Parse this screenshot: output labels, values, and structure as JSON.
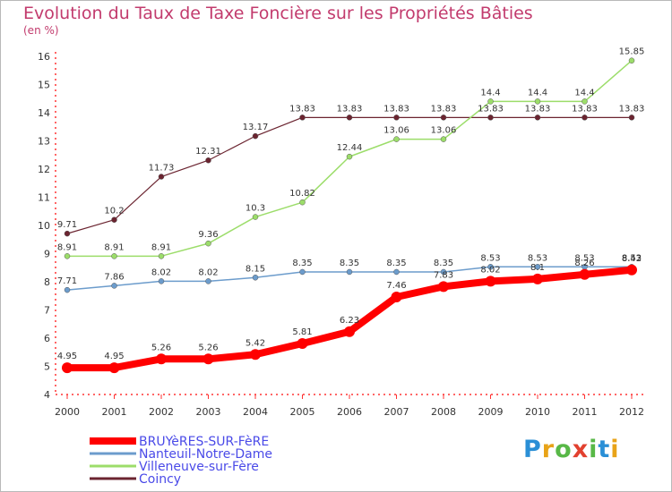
{
  "title": "Evolution du Taux de Taxe Foncière sur les Propriétés Bâties",
  "subtitle": "(en %)",
  "logo": {
    "letters": [
      {
        "t": "P",
        "color": "#2a8fd6"
      },
      {
        "t": "r",
        "color": "#e8a318"
      },
      {
        "t": "o",
        "color": "#58b847"
      },
      {
        "t": "x",
        "color": "#e2412f"
      },
      {
        "t": "i",
        "color": "#58b847"
      },
      {
        "t": "t",
        "color": "#2a8fd6"
      },
      {
        "t": "i",
        "color": "#e8a318"
      }
    ]
  },
  "chart_data": {
    "type": "line",
    "title": "Evolution du Taux de Taxe Foncière sur les Propriétés Bâties",
    "ylabel": "(en %)",
    "xlabel": "",
    "categories": [
      "2000",
      "2001",
      "2002",
      "2003",
      "2004",
      "2005",
      "2006",
      "2007",
      "2008",
      "2009",
      "2010",
      "2011",
      "2012"
    ],
    "ylim": [
      4,
      16
    ],
    "yticks": [
      "4",
      "5",
      "6",
      "7",
      "8",
      "9",
      "10",
      "11",
      "12",
      "13",
      "14",
      "15",
      "16"
    ],
    "grid": false,
    "legend_position": "bottom-left",
    "series": [
      {
        "name": "Coincy",
        "color": "#6b2430",
        "width": 1.2,
        "values": [
          9.71,
          10.2,
          11.73,
          12.31,
          13.17,
          13.83,
          13.83,
          13.83,
          13.83,
          13.83,
          13.83,
          13.83,
          13.83
        ],
        "labels": [
          "9.71",
          "10.2",
          "11.73",
          "12.31",
          "13.17",
          "13.83",
          "13.83",
          "13.83",
          "13.83",
          "13.83",
          "13.83",
          "13.83",
          "13.83"
        ]
      },
      {
        "name": "Villeneuve-sur-Fère",
        "color": "#9cdd6a",
        "width": 1.5,
        "values": [
          8.91,
          8.91,
          8.91,
          9.36,
          10.3,
          10.82,
          12.44,
          13.06,
          13.06,
          14.4,
          14.4,
          14.4,
          15.85
        ],
        "labels": [
          "8.91",
          "8.91",
          "8.91",
          "9.36",
          "10.3",
          "10.82",
          "12.44",
          "13.06",
          "13.06",
          "14.4",
          "14.4",
          "14.4",
          "15.85"
        ]
      },
      {
        "name": "Nanteuil-Notre-Dame",
        "color": "#6c9ccc",
        "width": 1.5,
        "values": [
          7.71,
          7.86,
          8.02,
          8.02,
          8.15,
          8.35,
          8.35,
          8.35,
          8.35,
          8.53,
          8.53,
          8.53,
          8.53
        ],
        "labels": [
          "7.71",
          "7.86",
          "8.02",
          "8.02",
          "8.15",
          "8.35",
          "8.35",
          "8.35",
          "8.35",
          "8.53",
          "8.53",
          "8.53",
          "8.53"
        ]
      },
      {
        "name": "BRUYèRES-SUR-FèRE",
        "color": "#ff0000",
        "width": 8,
        "values": [
          4.95,
          4.95,
          5.26,
          5.26,
          5.42,
          5.81,
          6.23,
          7.46,
          7.83,
          8.02,
          8.1,
          8.26,
          8.42
        ],
        "labels": [
          "4.95",
          "4.95",
          "5.26",
          "5.26",
          "5.42",
          "5.81",
          "6.23",
          "7.46",
          "7.83",
          "8.02",
          "8.1",
          "8.26",
          "8.42"
        ]
      }
    ],
    "legend": [
      "BRUYèRES-SUR-FèRE",
      "Nanteuil-Notre-Dame",
      "Villeneuve-sur-Fère",
      "Coincy"
    ]
  }
}
